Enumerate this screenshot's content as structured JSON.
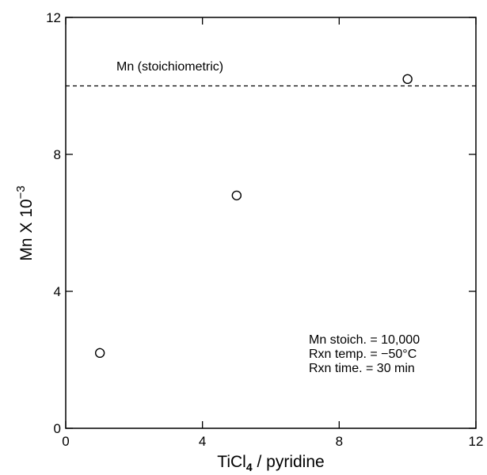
{
  "chart_data": {
    "type": "scatter",
    "xlabel": "TiCl",
    "xlabel_subscript": "4",
    "xlabel_suffix": " / pyridine",
    "ylabel": "Mn X 10",
    "ylabel_superscript": "−3",
    "xlim": [
      0,
      12
    ],
    "ylim": [
      0,
      12
    ],
    "x_ticks": [
      0,
      4,
      8,
      12
    ],
    "y_ticks": [
      0,
      4,
      8,
      12
    ],
    "x_tick_labels": [
      "0",
      "4",
      "8",
      "12"
    ],
    "y_tick_labels": [
      "0",
      "4",
      "8",
      "12"
    ],
    "grid": false,
    "points": [
      {
        "x": 1,
        "y": 2.2
      },
      {
        "x": 5,
        "y": 6.8
      },
      {
        "x": 10,
        "y": 10.2
      }
    ],
    "reference_line": {
      "y": 10,
      "style": "dashed",
      "label": "Mn  (stoichiometric)"
    },
    "annotations": [
      "Mn  stoich.  =  10,000",
      "Rxn  temp.  =  −50°C",
      "Rxn  time.    =  30  min"
    ]
  }
}
